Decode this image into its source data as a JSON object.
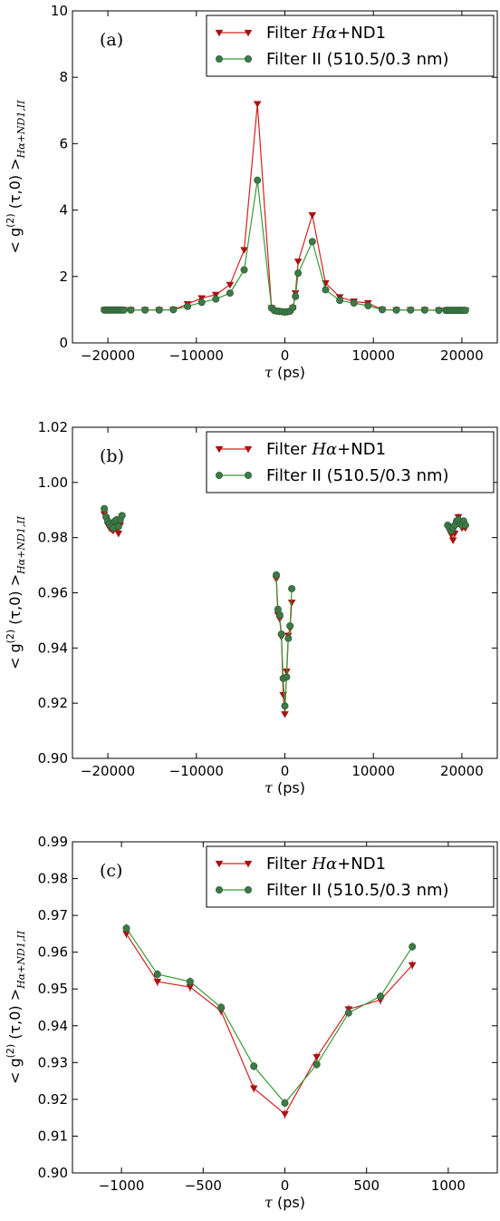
{
  "colors": {
    "red_series": "#d62020",
    "red_marker": "#aa1111",
    "green_series": "#3a9a3a",
    "green_marker": "#3e7a48"
  },
  "chart_data": [
    {
      "type": "line",
      "panel_label": "(a)",
      "xlabel": {
        "symbol": "τ",
        "unit": " (ps)"
      },
      "ylabel": {
        "prefix": "< g",
        "sup": "(2)",
        "mid": " (τ,0) >",
        "sub": "Hα+ND1,II"
      },
      "xlim": [
        -24000,
        24000
      ],
      "ylim": [
        0,
        10
      ],
      "xticks": [
        -20000,
        -10000,
        0,
        10000,
        20000
      ],
      "xtick_labels": [
        "−20000",
        "−10000",
        "0",
        "10000",
        "20000"
      ],
      "yticks": [
        0,
        2,
        4,
        6,
        8,
        10
      ],
      "ytick_labels": [
        "0",
        "2",
        "4",
        "6",
        "8",
        "10"
      ],
      "grid": false,
      "legend_position": "top-right",
      "series": [
        {
          "name": "Filter Hα+ND1",
          "name_parts": [
            "Filter ",
            "Hα",
            "+ND1"
          ],
          "marker": "triangle-down",
          "x": [
            -20400,
            -20200,
            -20000,
            -19800,
            -19600,
            -19400,
            -19200,
            -19000,
            -18800,
            -18600,
            -18400,
            -18200,
            -17400,
            -15800,
            -14200,
            -12600,
            -11000,
            -9400,
            -7800,
            -6200,
            -4600,
            -3100,
            -1500,
            -1200,
            -900,
            -600,
            -300,
            0,
            300,
            600,
            900,
            1200,
            1500,
            3100,
            4600,
            6200,
            7800,
            9400,
            11000,
            12600,
            14200,
            15800,
            17400,
            18200,
            18400,
            18600,
            18800,
            19000,
            19200,
            19400,
            19600,
            19800,
            20000,
            20200,
            20400
          ],
          "y": [
            0.99,
            0.99,
            0.99,
            0.99,
            0.99,
            0.99,
            0.99,
            0.99,
            0.99,
            0.99,
            0.99,
            0.99,
            0.99,
            0.99,
            0.99,
            1.0,
            1.17,
            1.35,
            1.45,
            1.75,
            2.8,
            7.2,
            1.05,
            0.97,
            0.95,
            0.94,
            0.93,
            0.92,
            0.93,
            0.95,
            1.05,
            1.5,
            2.45,
            3.85,
            1.8,
            1.38,
            1.25,
            1.2,
            1.0,
            0.99,
            0.99,
            0.99,
            0.98,
            0.98,
            0.98,
            0.98,
            0.98,
            0.98,
            0.98,
            0.98,
            0.98,
            0.98,
            0.98,
            0.98,
            0.98
          ]
        },
        {
          "name": "Filter II (510.5/0.3 nm)",
          "name_parts": [
            "Filter II (510.5/0.3 nm)"
          ],
          "marker": "circle",
          "x": [
            -20400,
            -20200,
            -20000,
            -19800,
            -19600,
            -19400,
            -19200,
            -19000,
            -18800,
            -18600,
            -18400,
            -18200,
            -17400,
            -15800,
            -14200,
            -12600,
            -11000,
            -9400,
            -7800,
            -6200,
            -4600,
            -3100,
            -1500,
            -1200,
            -900,
            -600,
            -300,
            0,
            300,
            600,
            900,
            1200,
            1500,
            3100,
            4600,
            6200,
            7800,
            9400,
            11000,
            12600,
            14200,
            15800,
            17400,
            18200,
            18400,
            18600,
            18800,
            19000,
            19200,
            19400,
            19600,
            19800,
            20000,
            20200,
            20400
          ],
          "y": [
            0.99,
            0.99,
            0.99,
            0.99,
            0.99,
            0.99,
            0.99,
            0.99,
            0.99,
            0.99,
            0.99,
            0.99,
            0.99,
            0.99,
            0.99,
            1.0,
            1.1,
            1.22,
            1.32,
            1.5,
            2.2,
            4.9,
            1.05,
            0.98,
            0.96,
            0.95,
            0.94,
            0.93,
            0.94,
            0.96,
            1.06,
            1.4,
            2.1,
            3.05,
            1.6,
            1.28,
            1.2,
            1.12,
            1.0,
            0.99,
            0.99,
            0.99,
            0.98,
            0.98,
            0.98,
            0.98,
            0.98,
            0.98,
            0.98,
            0.98,
            0.98,
            0.98,
            0.98,
            0.98,
            0.98
          ]
        }
      ]
    },
    {
      "type": "scatter",
      "panel_label": "(b)",
      "xlabel": {
        "symbol": "τ",
        "unit": " (ps)"
      },
      "ylabel": {
        "prefix": "< g",
        "sup": "(2)",
        "mid": " (τ,0) >",
        "sub": "Hα+ND1,II"
      },
      "xlim": [
        -24000,
        24000
      ],
      "ylim": [
        0.9,
        1.02
      ],
      "xticks": [
        -20000,
        -10000,
        0,
        10000,
        20000
      ],
      "xtick_labels": [
        "−20000",
        "−10000",
        "0",
        "10000",
        "20000"
      ],
      "yticks": [
        0.9,
        0.92,
        0.94,
        0.96,
        0.98,
        1.0,
        1.02
      ],
      "ytick_labels": [
        "0.90",
        "0.92",
        "0.94",
        "0.96",
        "0.98",
        "1.00",
        "1.02"
      ],
      "grid": false,
      "legend_position": "top-right",
      "series": [
        {
          "name": "Filter Hα+ND1",
          "name_parts": [
            "Filter ",
            "Hα",
            "+ND1"
          ],
          "marker": "triangle-down",
          "segments": [
            {
              "x": [
                -20400,
                -20200,
                -20000,
                -19800,
                -19600,
                -19400,
                -19200,
                -19000,
                -18800,
                -18600,
                -18400
              ],
              "y": [
                0.9885,
                0.9865,
                0.9845,
                0.9835,
                0.983,
                0.9825,
                0.984,
                0.9835,
                0.9815,
                0.9845,
                0.9875
              ]
            },
            {
              "x": [
                -970,
                -780,
                -580,
                -390,
                -190,
                0,
                195,
                390,
                585,
                780
              ],
              "y": [
                0.965,
                0.952,
                0.9505,
                0.944,
                0.923,
                0.916,
                0.9315,
                0.9445,
                0.947,
                0.9565
              ]
            },
            {
              "x": [
                18400,
                18600,
                18800,
                19000,
                19200,
                19400,
                19600,
                19800,
                20000,
                20200,
                20400
              ],
              "y": [
                0.9835,
                0.9825,
                0.981,
                0.979,
                0.9815,
                0.985,
                0.9875,
                0.986,
                0.9835,
                0.984,
                0.9835
              ]
            }
          ]
        },
        {
          "name": "Filter II (510.5/0.3 nm)",
          "name_parts": [
            "Filter II (510.5/0.3 nm)"
          ],
          "marker": "circle",
          "segments": [
            {
              "x": [
                -20400,
                -20200,
                -20000,
                -19800,
                -19600,
                -19400,
                -19200,
                -19000,
                -18800,
                -18600,
                -18400
              ],
              "y": [
                0.9905,
                0.9875,
                0.986,
                0.985,
                0.984,
                0.9835,
                0.986,
                0.9865,
                0.984,
                0.9865,
                0.988
              ]
            },
            {
              "x": [
                -970,
                -780,
                -580,
                -390,
                -190,
                0,
                195,
                390,
                585,
                780
              ],
              "y": [
                0.9665,
                0.954,
                0.952,
                0.945,
                0.929,
                0.919,
                0.9295,
                0.9435,
                0.948,
                0.9615
              ]
            },
            {
              "x": [
                18400,
                18600,
                18800,
                19000,
                19200,
                19400,
                19600,
                19800,
                20000,
                20200,
                20400
              ],
              "y": [
                0.9845,
                0.9835,
                0.9825,
                0.9835,
                0.9845,
                0.986,
                0.9865,
                0.985,
                0.9845,
                0.986,
                0.9845
              ]
            }
          ]
        }
      ]
    },
    {
      "type": "line",
      "panel_label": "(c)",
      "xlabel": {
        "symbol": "τ",
        "unit": " (ps)"
      },
      "ylabel": {
        "prefix": "< g",
        "sup": "(2)",
        "mid": " (τ,0) >",
        "sub": "Hα+ND1,II"
      },
      "xlim": [
        -1300,
        1300
      ],
      "ylim": [
        0.9,
        0.99
      ],
      "xticks": [
        -1000,
        -500,
        0,
        500,
        1000
      ],
      "xtick_labels": [
        "−1000",
        "−500",
        "0",
        "500",
        "1000"
      ],
      "yticks": [
        0.9,
        0.91,
        0.92,
        0.93,
        0.94,
        0.95,
        0.96,
        0.97,
        0.98,
        0.99
      ],
      "ytick_labels": [
        "0.90",
        "0.91",
        "0.92",
        "0.93",
        "0.94",
        "0.95",
        "0.96",
        "0.97",
        "0.98",
        "0.99"
      ],
      "grid": false,
      "legend_position": "top-right",
      "series": [
        {
          "name": "Filter Hα+ND1",
          "name_parts": [
            "Filter ",
            "Hα",
            "+ND1"
          ],
          "marker": "triangle-down",
          "x": [
            -970,
            -780,
            -580,
            -390,
            -190,
            0,
            195,
            390,
            585,
            780
          ],
          "y": [
            0.965,
            0.952,
            0.9505,
            0.944,
            0.923,
            0.916,
            0.9315,
            0.9445,
            0.947,
            0.9565
          ]
        },
        {
          "name": "Filter II (510.5/0.3 nm)",
          "name_parts": [
            "Filter II (510.5/0.3 nm)"
          ],
          "marker": "circle",
          "x": [
            -970,
            -780,
            -580,
            -390,
            -190,
            0,
            195,
            390,
            585,
            780
          ],
          "y": [
            0.9665,
            0.954,
            0.952,
            0.945,
            0.929,
            0.919,
            0.9295,
            0.9435,
            0.948,
            0.9615
          ]
        }
      ]
    }
  ]
}
